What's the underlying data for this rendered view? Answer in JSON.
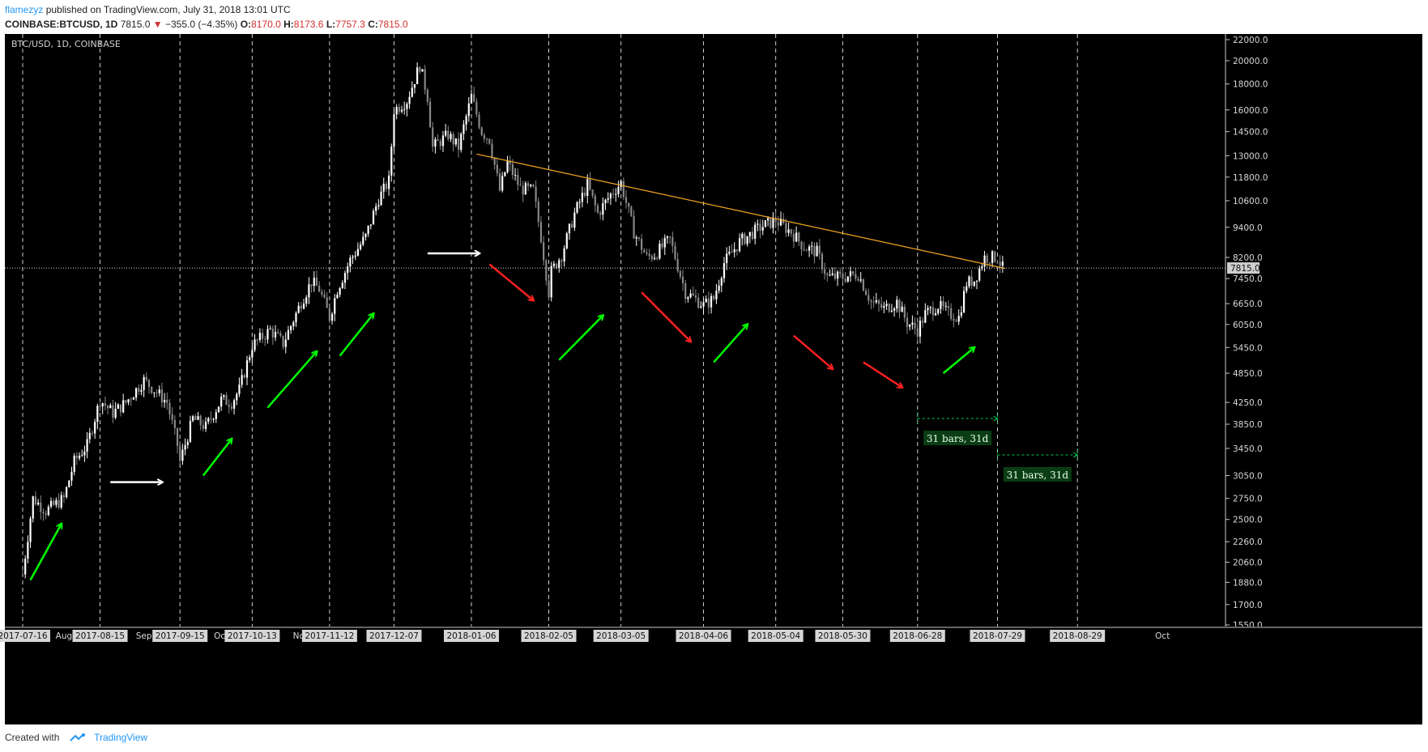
{
  "header": {
    "author": "flamezyz",
    "published_text": "published on TradingView.com, July 31, 2018 13:01 UTC",
    "symbol": "COINBASE:BTCUSD, 1D",
    "last": "7815.0",
    "change_arrow": "▼",
    "change": "−355.0 (−4.35%)",
    "o_label": "O:",
    "o_value": "8170.0",
    "h_label": "H:",
    "h_value": "8173.6",
    "l_label": "L:",
    "l_value": "7757.3",
    "c_label": "C:",
    "c_value": "7815.0"
  },
  "footer": {
    "created_with": "Created with",
    "brand": "TradingView",
    "logo_icon": "tradingview-logo-icon"
  },
  "chart_data": {
    "type": "candlestick",
    "title": "BTC/USD, 1D, COINBASE",
    "scale": "log",
    "ylim": [
      1550,
      22000
    ],
    "y_ticks": [
      22000,
      20000,
      18000,
      16000,
      14500,
      13000,
      11800,
      10600,
      9400,
      8200,
      7450,
      6650,
      6050,
      5450,
      4850,
      4250,
      3850,
      3450,
      3050,
      2750,
      2500,
      2260,
      2060,
      1880,
      1700,
      1550
    ],
    "y_tick_labels": [
      "22000.0",
      "20000.0",
      "18000.0",
      "16000.0",
      "14500.0",
      "13000.0",
      "11800.0",
      "10600.0",
      "9400.0",
      "8200.0",
      "7450.0",
      "6650.0",
      "6050.0",
      "5450.0",
      "4850.0",
      "4250.0",
      "3850.0",
      "3450.0",
      "3050.0",
      "2750.0",
      "2500.0",
      "2260.0",
      "2060.0",
      "1880.0",
      "1700.0",
      "1550.0"
    ],
    "xlim": [
      "2017-07-16",
      "2018-10-16"
    ],
    "x_tick_labels": [
      {
        "date": "2017-07-16",
        "label": "2017-07-16"
      },
      {
        "date": "2017-08-01",
        "label": "Aug"
      },
      {
        "date": "2017-08-15",
        "label": "2017-08-15"
      },
      {
        "date": "2017-09-01",
        "label": "Sep"
      },
      {
        "date": "2017-09-15",
        "label": "2017-09-15"
      },
      {
        "date": "2017-10-01",
        "label": "Oct"
      },
      {
        "date": "2017-10-13",
        "label": "2017-10-13"
      },
      {
        "date": "2017-11-01",
        "label": "Nov"
      },
      {
        "date": "2017-11-12",
        "label": "2017-11-12"
      },
      {
        "date": "2017-12-07",
        "label": "2017-12-07"
      },
      {
        "date": "2018-01-06",
        "label": "2018-01-06"
      },
      {
        "date": "2018-02-05",
        "label": "2018-02-05"
      },
      {
        "date": "2018-03-05",
        "label": "2018-03-05"
      },
      {
        "date": "2018-04-06",
        "label": "2018-04-06"
      },
      {
        "date": "2018-05-04",
        "label": "2018-05-04"
      },
      {
        "date": "2018-05-30",
        "label": "2018-05-30"
      },
      {
        "date": "2018-06-28",
        "label": "2018-06-28"
      },
      {
        "date": "2018-07-29",
        "label": "2018-07-29"
      },
      {
        "date": "2018-08-29",
        "label": "2018-08-29"
      },
      {
        "date": "2018-10-01",
        "label": "Oct"
      }
    ],
    "vertical_lines": [
      "2017-07-16",
      "2017-08-15",
      "2017-09-15",
      "2017-10-13",
      "2017-11-12",
      "2017-12-07",
      "2018-01-06",
      "2018-02-05",
      "2018-03-05",
      "2018-04-06",
      "2018-05-04",
      "2018-05-30",
      "2018-06-28",
      "2018-07-29",
      "2018-08-29"
    ],
    "price_path": [
      [
        "2017-07-16",
        1950
      ],
      [
        "2017-07-20",
        2750
      ],
      [
        "2017-07-25",
        2600
      ],
      [
        "2017-08-01",
        2750
      ],
      [
        "2017-08-05",
        3250
      ],
      [
        "2017-08-10",
        3500
      ],
      [
        "2017-08-15",
        4300
      ],
      [
        "2017-08-20",
        4050
      ],
      [
        "2017-08-25",
        4250
      ],
      [
        "2017-09-01",
        4700
      ],
      [
        "2017-09-05",
        4500
      ],
      [
        "2017-09-10",
        4250
      ],
      [
        "2017-09-14",
        3500
      ],
      [
        "2017-09-15",
        3250
      ],
      [
        "2017-09-20",
        3950
      ],
      [
        "2017-09-25",
        3800
      ],
      [
        "2017-10-01",
        4300
      ],
      [
        "2017-10-05",
        4250
      ],
      [
        "2017-10-08",
        4500
      ],
      [
        "2017-10-13",
        5500
      ],
      [
        "2017-10-20",
        5900
      ],
      [
        "2017-10-25",
        5550
      ],
      [
        "2017-11-01",
        6700
      ],
      [
        "2017-11-05",
        7350
      ],
      [
        "2017-11-08",
        7100
      ],
      [
        "2017-11-12",
        6250
      ],
      [
        "2017-11-15",
        7100
      ],
      [
        "2017-11-20",
        8100
      ],
      [
        "2017-11-26",
        9000
      ],
      [
        "2017-12-01",
        10700
      ],
      [
        "2017-12-05",
        11600
      ],
      [
        "2017-12-07",
        16000
      ],
      [
        "2017-12-12",
        16700
      ],
      [
        "2017-12-17",
        19600
      ],
      [
        "2017-12-20",
        17000
      ],
      [
        "2017-12-22",
        13500
      ],
      [
        "2017-12-28",
        14300
      ],
      [
        "2018-01-01",
        13500
      ],
      [
        "2018-01-06",
        17000
      ],
      [
        "2018-01-10",
        14500
      ],
      [
        "2018-01-13",
        14000
      ],
      [
        "2018-01-17",
        11100
      ],
      [
        "2018-01-20",
        12600
      ],
      [
        "2018-01-25",
        11200
      ],
      [
        "2018-01-30",
        11100
      ],
      [
        "2018-02-02",
        9000
      ],
      [
        "2018-02-05",
        7000
      ],
      [
        "2018-02-06",
        7700
      ],
      [
        "2018-02-10",
        8300
      ],
      [
        "2018-02-15",
        10000
      ],
      [
        "2018-02-20",
        11400
      ],
      [
        "2018-02-24",
        10000
      ],
      [
        "2018-03-01",
        10900
      ],
      [
        "2018-03-05",
        11500
      ],
      [
        "2018-03-10",
        9200
      ],
      [
        "2018-03-15",
        8200
      ],
      [
        "2018-03-18",
        8300
      ],
      [
        "2018-03-24",
        8900
      ],
      [
        "2018-03-30",
        7000
      ],
      [
        "2018-04-01",
        6900
      ],
      [
        "2018-04-06",
        6600
      ],
      [
        "2018-04-10",
        6800
      ],
      [
        "2018-04-14",
        8000
      ],
      [
        "2018-04-20",
        8800
      ],
      [
        "2018-04-28",
        9400
      ],
      [
        "2018-05-04",
        9700
      ],
      [
        "2018-05-10",
        9200
      ],
      [
        "2018-05-15",
        8600
      ],
      [
        "2018-05-20",
        8400
      ],
      [
        "2018-05-24",
        7500
      ],
      [
        "2018-05-30",
        7500
      ],
      [
        "2018-06-05",
        7600
      ],
      [
        "2018-06-10",
        6700
      ],
      [
        "2018-06-15",
        6500
      ],
      [
        "2018-06-20",
        6700
      ],
      [
        "2018-06-24",
        6100
      ],
      [
        "2018-06-28",
        5900
      ],
      [
        "2018-07-01",
        6350
      ],
      [
        "2018-07-06",
        6600
      ],
      [
        "2018-07-10",
        6350
      ],
      [
        "2018-07-14",
        6250
      ],
      [
        "2018-07-17",
        7300
      ],
      [
        "2018-07-20",
        7400
      ],
      [
        "2018-07-24",
        8200
      ],
      [
        "2018-07-27",
        8200
      ],
      [
        "2018-07-29",
        8200
      ],
      [
        "2018-07-31",
        7815
      ]
    ],
    "last_price": 7815.0,
    "last_price_label": "7815.0",
    "trendline": {
      "start": [
        "2018-01-08",
        13100
      ],
      "end": [
        "2018-08-01",
        7800
      ],
      "color": "#f5a623"
    },
    "arrows": [
      {
        "color": "#00ff00",
        "from": [
          "2017-07-19",
          1900
        ],
        "to": [
          "2017-07-31",
          2450
        ]
      },
      {
        "color": "#ffffff",
        "from": [
          "2017-08-19",
          2960
        ],
        "to": [
          "2017-09-08",
          2960
        ]
      },
      {
        "color": "#00ff00",
        "from": [
          "2017-09-24",
          3050
        ],
        "to": [
          "2017-10-05",
          3600
        ]
      },
      {
        "color": "#00ff00",
        "from": [
          "2017-10-19",
          4150
        ],
        "to": [
          "2017-11-07",
          5350
        ]
      },
      {
        "color": "#00ff00",
        "from": [
          "2017-11-16",
          5250
        ],
        "to": [
          "2017-11-29",
          6350
        ]
      },
      {
        "color": "#ffffff",
        "from": [
          "2017-12-20",
          8350
        ],
        "to": [
          "2018-01-09",
          8350
        ]
      },
      {
        "color": "#ff2020",
        "from": [
          "2018-01-13",
          7950
        ],
        "to": [
          "2018-01-30",
          6750
        ]
      },
      {
        "color": "#00ff00",
        "from": [
          "2018-02-09",
          5150
        ],
        "to": [
          "2018-02-26",
          6300
        ]
      },
      {
        "color": "#ff2020",
        "from": [
          "2018-03-13",
          7000
        ],
        "to": [
          "2018-04-01",
          5600
        ]
      },
      {
        "color": "#00ff00",
        "from": [
          "2018-04-10",
          5100
        ],
        "to": [
          "2018-04-23",
          6050
        ]
      },
      {
        "color": "#ff2020",
        "from": [
          "2018-05-11",
          5750
        ],
        "to": [
          "2018-05-26",
          4950
        ]
      },
      {
        "color": "#ff2020",
        "from": [
          "2018-06-07",
          5100
        ],
        "to": [
          "2018-06-22",
          4550
        ]
      },
      {
        "color": "#00ff00",
        "from": [
          "2018-07-08",
          4850
        ],
        "to": [
          "2018-07-20",
          5450
        ]
      }
    ],
    "date_ranges": [
      {
        "from": "2018-06-28",
        "to": "2018-07-29",
        "level": 3950,
        "label": "31 bars, 31d"
      },
      {
        "from": "2018-07-29",
        "to": "2018-08-29",
        "level": 3350,
        "label": "31 bars, 31d"
      }
    ],
    "colors": {
      "background": "#000000",
      "up": "#ffffff",
      "down": "#888888",
      "dashed_line": "#cccccc",
      "range": "#00c853",
      "range_label_bg": "#0b3d14"
    }
  }
}
